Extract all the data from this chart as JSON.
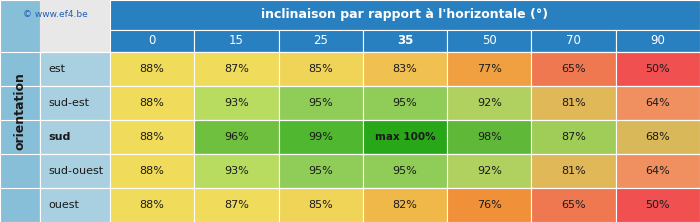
{
  "title": "inclinaison par rapport à l'horizontale (°)",
  "col_headers": [
    "0",
    "15",
    "25",
    "35",
    "50",
    "70",
    "90"
  ],
  "row_headers": [
    "est",
    "sud-est",
    "sud",
    "sud-ouest",
    "ouest"
  ],
  "values": [
    [
      "88%",
      "87%",
      "85%",
      "83%",
      "77%",
      "65%",
      "50%"
    ],
    [
      "88%",
      "93%",
      "95%",
      "95%",
      "92%",
      "81%",
      "64%"
    ],
    [
      "88%",
      "96%",
      "99%",
      "max 100%",
      "98%",
      "87%",
      "68%"
    ],
    [
      "88%",
      "93%",
      "95%",
      "95%",
      "92%",
      "81%",
      "64%"
    ],
    [
      "88%",
      "87%",
      "85%",
      "82%",
      "76%",
      "65%",
      "50%"
    ]
  ],
  "cell_colors": [
    [
      "#f0dc5a",
      "#f0dc5a",
      "#f0d458",
      "#f0c050",
      "#f0a040",
      "#f07850",
      "#f05050"
    ],
    [
      "#f0dc5a",
      "#b8dc60",
      "#90cc58",
      "#90cc58",
      "#b0d060",
      "#e0b858",
      "#f09060"
    ],
    [
      "#f0dc5a",
      "#70c040",
      "#50b830",
      "#28a818",
      "#60b838",
      "#a0cc58",
      "#d8b858"
    ],
    [
      "#f0dc5a",
      "#b8dc60",
      "#90cc58",
      "#90cc58",
      "#b0d060",
      "#e0b858",
      "#f09060"
    ],
    [
      "#f0dc5a",
      "#f0dc5a",
      "#f0d458",
      "#f0b848",
      "#f09038",
      "#f07850",
      "#f05050"
    ]
  ],
  "header_bg": "#2980c0",
  "header_text": "#ffffff",
  "side_bg": "#88bfd8",
  "label_bg": "#a8d0e0",
  "bg_color": "#e8e8e8",
  "orientation_label": "orientation",
  "copyright_text": "© www.ef4.be",
  "copyright_color": "#2060b0"
}
